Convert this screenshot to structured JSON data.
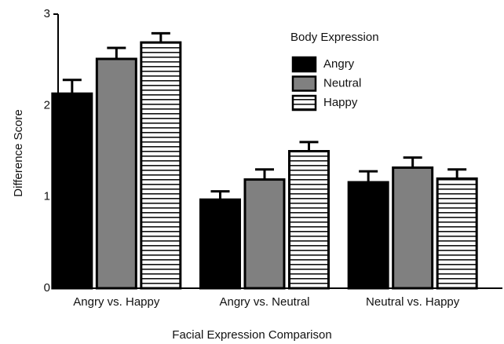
{
  "chart_data": {
    "type": "bar",
    "xlabel": "Facial Expression Comparison",
    "ylabel": "Difference Score",
    "legend_title": "Body Expression",
    "categories": [
      "Angry vs. Happy",
      "Angry vs. Neutral",
      "Neutral vs. Happy"
    ],
    "series": [
      {
        "name": "Angry",
        "color": "#000000",
        "values": [
          2.13,
          0.97,
          1.16
        ],
        "errors": [
          0.15,
          0.09,
          0.12
        ]
      },
      {
        "name": "Neutral",
        "color": "#808080",
        "values": [
          2.51,
          1.19,
          1.32
        ],
        "errors": [
          0.12,
          0.11,
          0.11
        ]
      },
      {
        "name": "Happy",
        "color": "striped",
        "values": [
          2.69,
          1.5,
          1.2
        ],
        "errors": [
          0.1,
          0.1,
          0.1
        ]
      }
    ],
    "ylim": [
      0,
      3
    ],
    "yticks": [
      0,
      1,
      2,
      3
    ]
  }
}
